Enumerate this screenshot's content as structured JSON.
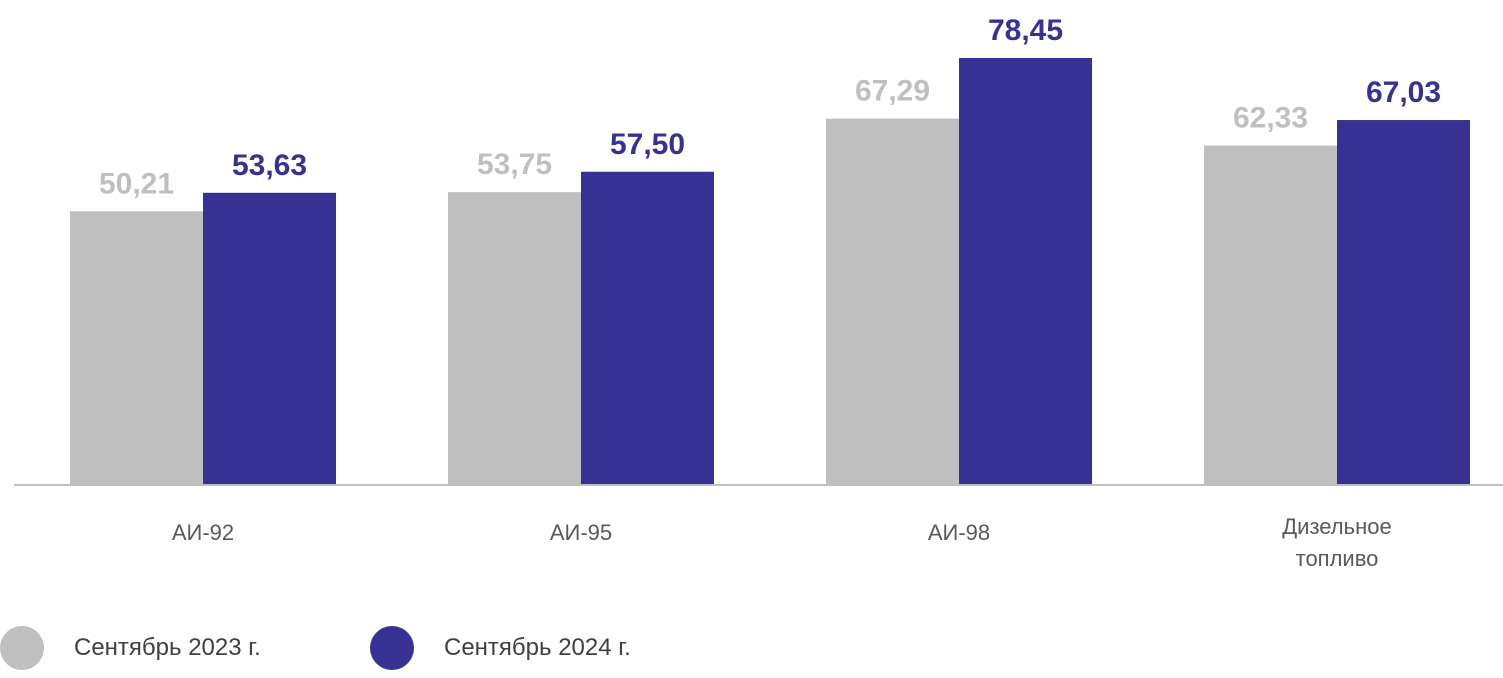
{
  "chart_data": {
    "type": "bar",
    "categories": [
      "АИ-92",
      "АИ-95",
      "АИ-98",
      "Дизельное топливо"
    ],
    "category_lines": [
      [
        "АИ-92"
      ],
      [
        "АИ-95"
      ],
      [
        "АИ-98"
      ],
      [
        "Дизельное",
        "топливо"
      ]
    ],
    "series": [
      {
        "name": "Сентябрь 2023 г.",
        "values": [
          50.21,
          53.75,
          67.29,
          62.33
        ],
        "labels": [
          "50,21",
          "53,75",
          "67,29",
          "62,33"
        ],
        "color": "#bfbfbf"
      },
      {
        "name": "Сентябрь 2024 г.",
        "values": [
          53.63,
          57.5,
          78.45,
          67.03
        ],
        "labels": [
          "53,63",
          "57,50",
          "78,45",
          "67,03"
        ],
        "color": "#373194"
      }
    ],
    "ylim": [
      0,
      80
    ],
    "grid": false,
    "legend_position": "bottom-left"
  }
}
